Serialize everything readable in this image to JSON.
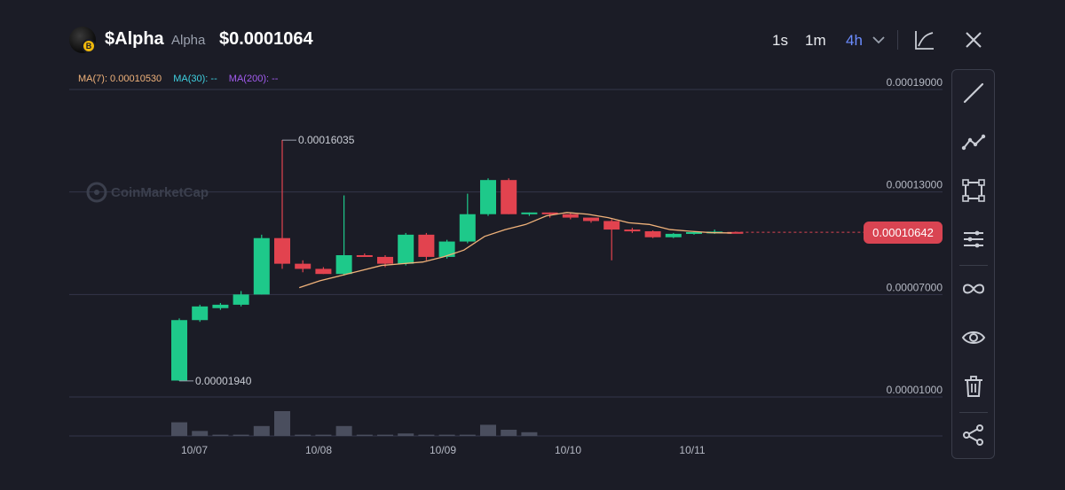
{
  "header": {
    "symbol": "$Alpha",
    "token_name": "Alpha",
    "price": "$0.0001064",
    "timeframes": [
      "1s",
      "1m",
      "4h"
    ],
    "active_timeframe": "4h"
  },
  "ma_legend": {
    "ma7": "MA(7): 0.00010530",
    "ma30": "MA(30): --",
    "ma200": "MA(200): --",
    "ma7_color": "#f0b27a",
    "ma30_color": "#3fd0e0",
    "ma200_color": "#a35cf0"
  },
  "colors": {
    "up": "#1ec98a",
    "down": "#e2434f",
    "volume": "#4a4e5e",
    "background": "#1b1c26"
  },
  "chart_data": {
    "type": "candlestick",
    "watermark": "CoinMarketCap",
    "y_ticks": [
      "0.00019000",
      "0.00013000",
      "0.00007000",
      "0.00001000"
    ],
    "x_ticks": [
      "10/07",
      "10/08",
      "10/09",
      "10/10",
      "10/11"
    ],
    "ylim": [
      1e-05,
      0.00019
    ],
    "annotations": [
      {
        "label": "0.00016035",
        "value": 0.00016035
      },
      {
        "label": "0.00001940",
        "value": 1.94e-05
      }
    ],
    "last_price": "0.00010642",
    "last_price_value": 0.00010642,
    "candles": [
      {
        "o": 1.96e-05,
        "h": 5.6e-05,
        "l": 1.94e-05,
        "c": 5.5e-05
      },
      {
        "o": 5.5e-05,
        "h": 6.4e-05,
        "l": 5.4e-05,
        "c": 6.3e-05
      },
      {
        "o": 6.2e-05,
        "h": 6.5e-05,
        "l": 6.1e-05,
        "c": 6.4e-05
      },
      {
        "o": 6.4e-05,
        "h": 7.2e-05,
        "l": 6.3e-05,
        "c": 7e-05
      },
      {
        "o": 7e-05,
        "h": 0.000105,
        "l": 7e-05,
        "c": 0.000103
      },
      {
        "o": 0.000103,
        "h": 0.0001604,
        "l": 8.5e-05,
        "c": 8.8e-05
      },
      {
        "o": 8.8e-05,
        "h": 9e-05,
        "l": 8.3e-05,
        "c": 8.5e-05
      },
      {
        "o": 8.5e-05,
        "h": 8.6e-05,
        "l": 8.2e-05,
        "c": 8.2e-05
      },
      {
        "o": 8.2e-05,
        "h": 0.000128,
        "l": 8.1e-05,
        "c": 9.3e-05
      },
      {
        "o": 9.3e-05,
        "h": 9.4e-05,
        "l": 9.2e-05,
        "c": 9.2e-05
      },
      {
        "o": 9.2e-05,
        "h": 9.3e-05,
        "l": 8.6e-05,
        "c": 8.8e-05
      },
      {
        "o": 8.8e-05,
        "h": 0.000106,
        "l": 8.7e-05,
        "c": 0.000105
      },
      {
        "o": 0.000105,
        "h": 0.000106,
        "l": 9e-05,
        "c": 9.2e-05
      },
      {
        "o": 9.2e-05,
        "h": 0.000102,
        "l": 9.1e-05,
        "c": 0.000101
      },
      {
        "o": 0.000101,
        "h": 0.000129,
        "l": 0.0001,
        "c": 0.000117
      },
      {
        "o": 0.000117,
        "h": 0.000138,
        "l": 0.000116,
        "c": 0.000137
      },
      {
        "o": 0.000137,
        "h": 0.000138,
        "l": 0.000117,
        "c": 0.000117
      },
      {
        "o": 0.000117,
        "h": 0.000118,
        "l": 0.000116,
        "c": 0.000118
      },
      {
        "o": 0.000118,
        "h": 0.000118,
        "l": 0.000115,
        "c": 0.000117
      },
      {
        "o": 0.000117,
        "h": 0.000118,
        "l": 0.000114,
        "c": 0.000115
      },
      {
        "o": 0.000115,
        "h": 0.000115,
        "l": 0.000112,
        "c": 0.000113
      },
      {
        "o": 0.000113,
        "h": 0.000114,
        "l": 9e-05,
        "c": 0.000108
      },
      {
        "o": 0.000108,
        "h": 0.000109,
        "l": 0.000106,
        "c": 0.000107
      },
      {
        "o": 0.000107,
        "h": 0.0001075,
        "l": 0.000103,
        "c": 0.0001035
      },
      {
        "o": 0.0001035,
        "h": 0.000106,
        "l": 0.000103,
        "c": 0.0001055
      },
      {
        "o": 0.0001055,
        "h": 0.000107,
        "l": 0.000105,
        "c": 0.0001065
      },
      {
        "o": 0.000106,
        "h": 0.000108,
        "l": 0.0001055,
        "c": 0.0001068
      },
      {
        "o": 0.0001066,
        "h": 0.0001068,
        "l": 0.0001058,
        "c": 0.0001064
      }
    ],
    "ma7": [
      null,
      null,
      null,
      null,
      null,
      null,
      7.4e-05,
      7.8e-05,
      8.1e-05,
      8.4e-05,
      8.7e-05,
      8.8e-05,
      8.9e-05,
      9.2e-05,
      9.6e-05,
      0.000104,
      0.000108,
      0.000111,
      0.000116,
      0.000118,
      0.000117,
      0.000115,
      0.000112,
      0.000111,
      0.000108,
      0.000107,
      0.0001062,
      0.000106
    ],
    "volume": [
      0.55,
      0.2,
      0.05,
      0.05,
      0.4,
      1.0,
      0.05,
      0.05,
      0.4,
      0.05,
      0.05,
      0.1,
      0.05,
      0.05,
      0.05,
      0.45,
      0.25,
      0.15,
      0.0,
      0.0,
      0.0,
      0.0,
      0.0,
      0.0,
      0.0,
      0.0,
      0.0,
      0.0
    ]
  },
  "toolbar": {
    "tools": [
      "line-tool",
      "polyline-tool",
      "rectangle-tool",
      "parallel-lines-tool",
      "infinity-tool",
      "eye-tool",
      "trash-tool",
      "share-tool"
    ]
  }
}
